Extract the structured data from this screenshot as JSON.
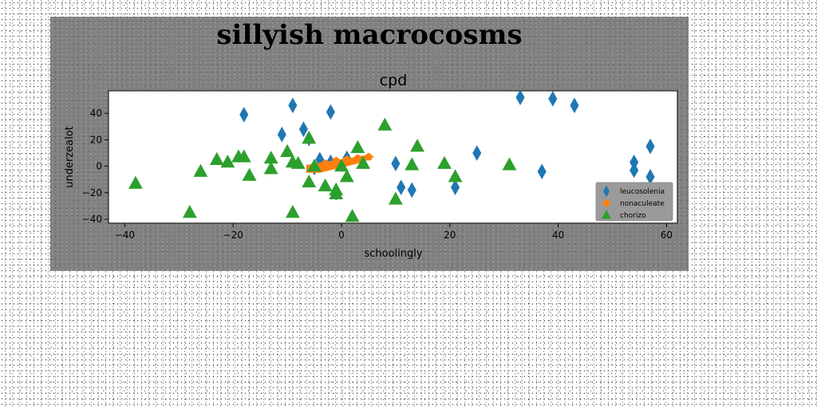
{
  "chart_data": {
    "type": "scatter",
    "suptitle": "sillyish macrocosms",
    "title": "cpd",
    "xlabel": "schoolingly",
    "ylabel": "underzealot",
    "xlim": [
      -43,
      62
    ],
    "ylim": [
      -43,
      57
    ],
    "xticks": [
      -40,
      -20,
      0,
      20,
      40,
      60
    ],
    "yticks": [
      -40,
      -20,
      0,
      20,
      40
    ],
    "grid": false,
    "legend_position": "lower-right",
    "series": [
      {
        "name": "leucosolenia",
        "marker": "thin_diamond",
        "color": "#1f77b4",
        "x": [
          -18,
          -9,
          -2,
          -11,
          -7,
          -6,
          -4,
          -1,
          1,
          10,
          11,
          13,
          21,
          25,
          33,
          37,
          39,
          43,
          54,
          54,
          57,
          57,
          -5,
          -2
        ],
        "y": [
          39,
          46,
          41,
          24,
          28,
          21,
          5,
          -20,
          6,
          2,
          -16,
          -18,
          -16,
          10,
          52,
          -4,
          51,
          46,
          3,
          -3,
          -8,
          15,
          -1,
          3
        ]
      },
      {
        "name": "nonaculeate",
        "marker": "pentagon",
        "color": "#ff7f0e",
        "x": [
          -5,
          -3,
          -1,
          1,
          3,
          5
        ],
        "y": [
          0,
          2,
          4,
          5,
          6,
          7
        ]
      },
      {
        "name": "chorizo",
        "marker": "triangle_up",
        "color": "#2ca02c",
        "x": [
          -38,
          -28,
          -26,
          -23,
          -21,
          -19,
          -18,
          -17,
          -13,
          -13,
          -10,
          -9,
          -9,
          -8,
          -6,
          -6,
          -5,
          -3,
          -1,
          -1,
          0,
          1,
          2,
          3,
          4,
          8,
          10,
          13,
          14,
          19,
          21,
          31
        ],
        "y": [
          -13,
          -35,
          -4,
          5,
          3,
          7,
          7,
          -7,
          6,
          -2,
          11,
          3,
          -35,
          2,
          -12,
          21,
          0,
          -15,
          -18,
          -21,
          0,
          -8,
          -38,
          14,
          2,
          31,
          -25,
          1,
          15,
          2,
          -8,
          1
        ]
      }
    ]
  }
}
